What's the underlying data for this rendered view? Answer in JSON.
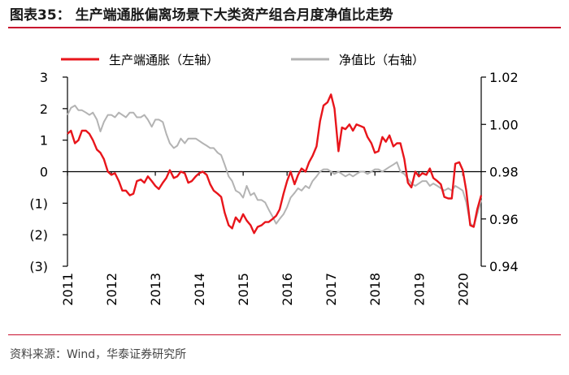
{
  "title": "图表35：  生产端通胀偏离场景下大类资产组合月度净值比走势",
  "source": "资料来源：Wind，华泰证券研究所",
  "colors": {
    "ppi": "#e8151b",
    "nav": "#b3b3b3",
    "accent": "#c8102e"
  },
  "chart_data": {
    "type": "line",
    "title": "生产端通胀偏离场景下大类资产组合月度净值比走势",
    "x_tick_labels": [
      "2011",
      "2012",
      "2013",
      "2014",
      "2015",
      "2016",
      "2017",
      "2018",
      "2019",
      "2020"
    ],
    "x_range": [
      2011.0,
      2020.42
    ],
    "y_left": {
      "label": "生产端通胀（左轴）",
      "range": [
        -3,
        3
      ],
      "tick_labels": [
        "3",
        "2",
        "1",
        "0",
        "(1)",
        "(2)",
        "(3)"
      ],
      "tick_values": [
        3,
        2,
        1,
        0,
        -1,
        -2,
        -3
      ]
    },
    "y_right": {
      "label": "净值比（右轴）",
      "range": [
        0.94,
        1.02
      ],
      "tick_labels": [
        "1.02",
        "1.00",
        "0.98",
        "0.96",
        "0.94"
      ],
      "tick_values": [
        1.02,
        1.0,
        0.98,
        0.96,
        0.94
      ]
    },
    "series": [
      {
        "name": "生产端通胀（左轴）",
        "axis": "left",
        "color": "#e8151b",
        "points": [
          [
            2011.0,
            1.2
          ],
          [
            2011.08,
            1.3
          ],
          [
            2011.17,
            0.9
          ],
          [
            2011.25,
            1.0
          ],
          [
            2011.33,
            1.3
          ],
          [
            2011.42,
            1.3
          ],
          [
            2011.5,
            1.2
          ],
          [
            2011.58,
            1.0
          ],
          [
            2011.67,
            0.7
          ],
          [
            2011.75,
            0.6
          ],
          [
            2011.83,
            0.4
          ],
          [
            2011.92,
            0.0
          ],
          [
            2012.0,
            -0.1
          ],
          [
            2012.08,
            -0.05
          ],
          [
            2012.17,
            -0.3
          ],
          [
            2012.25,
            -0.6
          ],
          [
            2012.33,
            -0.6
          ],
          [
            2012.42,
            -0.75
          ],
          [
            2012.5,
            -0.7
          ],
          [
            2012.58,
            -0.3
          ],
          [
            2012.67,
            -0.25
          ],
          [
            2012.75,
            -0.35
          ],
          [
            2012.83,
            -0.15
          ],
          [
            2012.92,
            -0.3
          ],
          [
            2013.0,
            -0.45
          ],
          [
            2013.08,
            -0.55
          ],
          [
            2013.17,
            -0.35
          ],
          [
            2013.25,
            -0.2
          ],
          [
            2013.33,
            0.05
          ],
          [
            2013.42,
            -0.2
          ],
          [
            2013.5,
            -0.15
          ],
          [
            2013.58,
            0.0
          ],
          [
            2013.67,
            -0.05
          ],
          [
            2013.75,
            -0.35
          ],
          [
            2013.83,
            -0.3
          ],
          [
            2013.92,
            -0.15
          ],
          [
            2014.0,
            -0.05
          ],
          [
            2014.08,
            0.0
          ],
          [
            2014.17,
            -0.1
          ],
          [
            2014.25,
            -0.4
          ],
          [
            2014.33,
            -0.6
          ],
          [
            2014.42,
            -0.7
          ],
          [
            2014.5,
            -0.8
          ],
          [
            2014.58,
            -1.3
          ],
          [
            2014.67,
            -1.7
          ],
          [
            2014.75,
            -1.8
          ],
          [
            2014.83,
            -1.45
          ],
          [
            2014.92,
            -1.6
          ],
          [
            2015.0,
            -1.35
          ],
          [
            2015.08,
            -1.55
          ],
          [
            2015.17,
            -1.7
          ],
          [
            2015.25,
            -1.95
          ],
          [
            2015.33,
            -1.75
          ],
          [
            2015.42,
            -1.7
          ],
          [
            2015.5,
            -1.6
          ],
          [
            2015.58,
            -1.6
          ],
          [
            2015.67,
            -1.5
          ],
          [
            2015.75,
            -1.4
          ],
          [
            2015.83,
            -1.2
          ],
          [
            2015.92,
            -0.7
          ],
          [
            2016.0,
            -0.3
          ],
          [
            2016.08,
            0.0
          ],
          [
            2016.17,
            -0.4
          ],
          [
            2016.25,
            -0.1
          ],
          [
            2016.33,
            0.1
          ],
          [
            2016.42,
            0.0
          ],
          [
            2016.5,
            0.3
          ],
          [
            2016.58,
            0.5
          ],
          [
            2016.67,
            0.8
          ],
          [
            2016.75,
            1.6
          ],
          [
            2016.83,
            2.1
          ],
          [
            2016.92,
            2.2
          ],
          [
            2017.0,
            2.45
          ],
          [
            2017.08,
            2.0
          ],
          [
            2017.17,
            0.65
          ],
          [
            2017.25,
            1.4
          ],
          [
            2017.33,
            1.35
          ],
          [
            2017.42,
            1.5
          ],
          [
            2017.5,
            1.3
          ],
          [
            2017.58,
            1.5
          ],
          [
            2017.67,
            1.45
          ],
          [
            2017.75,
            1.4
          ],
          [
            2017.83,
            1.1
          ],
          [
            2017.92,
            0.9
          ],
          [
            2018.0,
            0.6
          ],
          [
            2018.08,
            0.65
          ],
          [
            2018.17,
            1.1
          ],
          [
            2018.25,
            0.95
          ],
          [
            2018.33,
            1.15
          ],
          [
            2018.42,
            0.8
          ],
          [
            2018.5,
            0.9
          ],
          [
            2018.58,
            0.9
          ],
          [
            2018.67,
            0.4
          ],
          [
            2018.75,
            -0.35
          ],
          [
            2018.83,
            -0.5
          ],
          [
            2018.92,
            0.0
          ],
          [
            2019.0,
            -0.15
          ],
          [
            2019.08,
            -0.05
          ],
          [
            2019.17,
            -0.1
          ],
          [
            2019.25,
            0.1
          ],
          [
            2019.33,
            -0.2
          ],
          [
            2019.42,
            -0.3
          ],
          [
            2019.5,
            -0.4
          ],
          [
            2019.58,
            -0.8
          ],
          [
            2019.67,
            -0.85
          ],
          [
            2019.75,
            -0.85
          ],
          [
            2019.83,
            0.25
          ],
          [
            2019.92,
            0.3
          ],
          [
            2020.0,
            0.05
          ],
          [
            2020.08,
            -0.6
          ],
          [
            2020.17,
            -1.7
          ],
          [
            2020.25,
            -1.75
          ],
          [
            2020.33,
            -1.2
          ],
          [
            2020.42,
            -0.75
          ]
        ]
      },
      {
        "name": "净值比（右轴）",
        "axis": "right",
        "color": "#b3b3b3",
        "points": [
          [
            2011.0,
            1.004
          ],
          [
            2011.08,
            1.007
          ],
          [
            2011.17,
            1.008
          ],
          [
            2011.25,
            1.006
          ],
          [
            2011.33,
            1.006
          ],
          [
            2011.42,
            1.005
          ],
          [
            2011.5,
            1.004
          ],
          [
            2011.58,
            1.005
          ],
          [
            2011.67,
            1.002
          ],
          [
            2011.75,
            0.997
          ],
          [
            2011.83,
            1.001
          ],
          [
            2011.92,
            1.004
          ],
          [
            2012.0,
            1.004
          ],
          [
            2012.08,
            1.003
          ],
          [
            2012.17,
            1.005
          ],
          [
            2012.25,
            1.004
          ],
          [
            2012.33,
            1.003
          ],
          [
            2012.42,
            1.005
          ],
          [
            2012.5,
            1.005
          ],
          [
            2012.58,
            1.003
          ],
          [
            2012.67,
            1.003
          ],
          [
            2012.75,
            1.004
          ],
          [
            2012.83,
            1.002
          ],
          [
            2012.92,
            0.999
          ],
          [
            2013.0,
            1.002
          ],
          [
            2013.08,
            1.002
          ],
          [
            2013.17,
            1.001
          ],
          [
            2013.25,
            0.996
          ],
          [
            2013.33,
            0.992
          ],
          [
            2013.42,
            0.99
          ],
          [
            2013.5,
            0.991
          ],
          [
            2013.58,
            0.994
          ],
          [
            2013.67,
            0.992
          ],
          [
            2013.75,
            0.994
          ],
          [
            2013.83,
            0.994
          ],
          [
            2013.92,
            0.994
          ],
          [
            2014.0,
            0.993
          ],
          [
            2014.08,
            0.992
          ],
          [
            2014.17,
            0.991
          ],
          [
            2014.25,
            0.99
          ],
          [
            2014.33,
            0.99
          ],
          [
            2014.42,
            0.988
          ],
          [
            2014.5,
            0.987
          ],
          [
            2014.58,
            0.983
          ],
          [
            2014.67,
            0.978
          ],
          [
            2014.75,
            0.976
          ],
          [
            2014.83,
            0.972
          ],
          [
            2014.92,
            0.971
          ],
          [
            2015.0,
            0.969
          ],
          [
            2015.08,
            0.974
          ],
          [
            2015.17,
            0.97
          ],
          [
            2015.25,
            0.971
          ],
          [
            2015.33,
            0.968
          ],
          [
            2015.42,
            0.968
          ],
          [
            2015.5,
            0.967
          ],
          [
            2015.58,
            0.964
          ],
          [
            2015.67,
            0.961
          ],
          [
            2015.75,
            0.958
          ],
          [
            2015.83,
            0.96
          ],
          [
            2015.92,
            0.962
          ],
          [
            2016.0,
            0.965
          ],
          [
            2016.08,
            0.969
          ],
          [
            2016.17,
            0.971
          ],
          [
            2016.25,
            0.973
          ],
          [
            2016.33,
            0.972
          ],
          [
            2016.42,
            0.974
          ],
          [
            2016.5,
            0.973
          ],
          [
            2016.58,
            0.976
          ],
          [
            2016.67,
            0.978
          ],
          [
            2016.75,
            0.98
          ],
          [
            2016.83,
            0.981
          ],
          [
            2016.92,
            0.981
          ],
          [
            2017.0,
            0.98
          ],
          [
            2017.08,
            0.979
          ],
          [
            2017.17,
            0.98
          ],
          [
            2017.25,
            0.979
          ],
          [
            2017.33,
            0.978
          ],
          [
            2017.42,
            0.979
          ],
          [
            2017.5,
            0.978
          ],
          [
            2017.58,
            0.979
          ],
          [
            2017.67,
            0.98
          ],
          [
            2017.75,
            0.98
          ],
          [
            2017.83,
            0.979
          ],
          [
            2017.92,
            0.98
          ],
          [
            2018.0,
            0.981
          ],
          [
            2018.08,
            0.981
          ],
          [
            2018.17,
            0.98
          ],
          [
            2018.25,
            0.981
          ],
          [
            2018.33,
            0.982
          ],
          [
            2018.42,
            0.983
          ],
          [
            2018.5,
            0.984
          ],
          [
            2018.58,
            0.98
          ],
          [
            2018.67,
            0.979
          ],
          [
            2018.75,
            0.977
          ],
          [
            2018.83,
            0.975
          ],
          [
            2018.92,
            0.974
          ],
          [
            2019.0,
            0.975
          ],
          [
            2019.08,
            0.976
          ],
          [
            2019.17,
            0.976
          ],
          [
            2019.25,
            0.974
          ],
          [
            2019.33,
            0.975
          ],
          [
            2019.42,
            0.974
          ],
          [
            2019.5,
            0.973
          ],
          [
            2019.58,
            0.972
          ],
          [
            2019.67,
            0.973
          ],
          [
            2019.75,
            0.972
          ],
          [
            2019.83,
            0.974
          ],
          [
            2019.92,
            0.973
          ],
          [
            2020.0,
            0.972
          ],
          [
            2020.08,
            0.967
          ],
          [
            2020.17,
            0.958
          ],
          [
            2020.25,
            0.957
          ],
          [
            2020.33,
            0.962
          ],
          [
            2020.42,
            0.968
          ]
        ]
      }
    ],
    "legend_placement": "top"
  }
}
